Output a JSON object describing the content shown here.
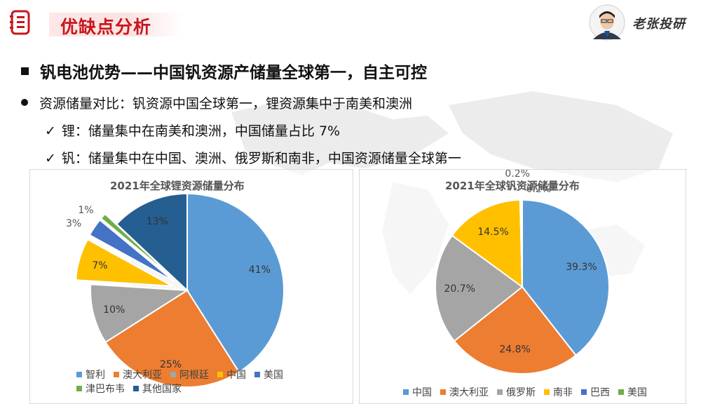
{
  "header": {
    "title": "优缺点分析",
    "brand": "老张投研",
    "accent_color": "#c8161d",
    "logo_icon": "document-list-icon",
    "avatar_icon": "presenter-avatar-icon"
  },
  "content": {
    "heading": "钒电池优势——中国钒资源产储量全球第一，自主可控",
    "bullet": "资源储量对比：钒资源中国全球第一，锂资源集中于南美和澳洲",
    "sub_items": [
      {
        "mark": "✓",
        "text": "锂：储量集中在南美和澳洲，中国储量占比 7%"
      },
      {
        "mark": "✓",
        "text": "钒：储量集中在中国、澳洲、俄罗斯和南非，中国资源储量全球第一"
      }
    ]
  },
  "chart_data": [
    {
      "type": "pie",
      "title": "2021年全球锂资源储量分布",
      "categories": [
        "智利",
        "澳大利亚",
        "阿根廷",
        "中国",
        "美国",
        "津巴布韦",
        "其他国家"
      ],
      "values": [
        41,
        25,
        10,
        7,
        3,
        1,
        13
      ],
      "value_labels": [
        "41%",
        "25%",
        "10%",
        "7%",
        "3%",
        "1%",
        "13%"
      ],
      "colors": [
        "#5b9bd5",
        "#ed7d31",
        "#a5a5a5",
        "#ffc000",
        "#4472c4",
        "#70ad47",
        "#255e91"
      ],
      "exploded": [
        "中国",
        "美国",
        "津巴布韦"
      ],
      "legend_placement": "bottom"
    },
    {
      "type": "pie",
      "title": "2021年全球钒资源储量分布",
      "categories": [
        "中国",
        "澳大利亚",
        "俄罗斯",
        "南非",
        "巴西",
        "美国"
      ],
      "values": [
        39.3,
        24.8,
        20.7,
        14.5,
        0.2,
        0.2
      ],
      "value_labels": [
        "39.3%",
        "24.8%",
        "20.7%",
        "14.5%",
        "0.2%",
        "0.2%"
      ],
      "colors": [
        "#5b9bd5",
        "#ed7d31",
        "#a5a5a5",
        "#ffc000",
        "#4472c4",
        "#70ad47"
      ],
      "legend_placement": "bottom"
    }
  ]
}
